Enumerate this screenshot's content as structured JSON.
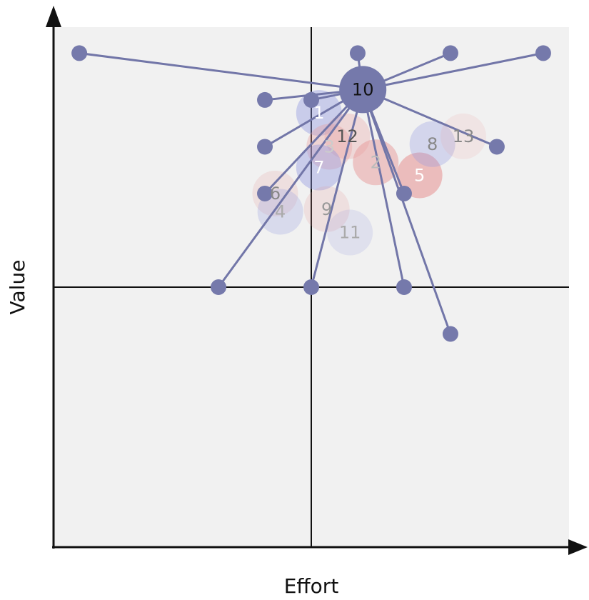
{
  "chart_data": {
    "type": "scatter",
    "title": "",
    "xlabel": "Effort",
    "ylabel": "Value",
    "xlim": [
      0,
      1
    ],
    "ylim": [
      0,
      1
    ],
    "quadrant_dividers": {
      "x": 0.5,
      "y": 0.5
    },
    "grid": false,
    "colors": {
      "background": "#f1f1f1",
      "connector": "#7276a8",
      "point": "#7579ab",
      "axis": "#111111",
      "bubble_blue": "#8f96e0",
      "bubble_red": "#e89a9a"
    },
    "hub": {
      "label": "10",
      "x": 0.6,
      "y": 0.88
    },
    "points": [
      {
        "x": 0.05,
        "y": 0.95
      },
      {
        "x": 0.41,
        "y": 0.86
      },
      {
        "x": 0.5,
        "y": 0.86
      },
      {
        "x": 0.59,
        "y": 0.86
      },
      {
        "x": 0.59,
        "y": 0.95
      },
      {
        "x": 0.77,
        "y": 0.95
      },
      {
        "x": 0.95,
        "y": 0.95
      },
      {
        "x": 0.41,
        "y": 0.77
      },
      {
        "x": 0.86,
        "y": 0.77
      },
      {
        "x": 0.41,
        "y": 0.68
      },
      {
        "x": 0.68,
        "y": 0.68
      },
      {
        "x": 0.32,
        "y": 0.5
      },
      {
        "x": 0.5,
        "y": 0.5
      },
      {
        "x": 0.68,
        "y": 0.5
      },
      {
        "x": 0.77,
        "y": 0.41
      }
    ],
    "bubbles": [
      {
        "label": "1",
        "x": 0.515,
        "y": 0.835,
        "color": "blue",
        "opacity": 0.4,
        "text_color": "#ffffff"
      },
      {
        "label": "12",
        "x": 0.57,
        "y": 0.79,
        "color": "red",
        "opacity": 0.3,
        "text_color": "#555555"
      },
      {
        "label": "3",
        "x": 0.535,
        "y": 0.77,
        "color": "red",
        "opacity": 0.35,
        "text_color": "#cccccc"
      },
      {
        "label": "7",
        "x": 0.515,
        "y": 0.73,
        "color": "blue",
        "opacity": 0.4,
        "text_color": "#ffffff"
      },
      {
        "label": "2",
        "x": 0.625,
        "y": 0.74,
        "color": "red",
        "opacity": 0.5,
        "text_color": "#bbbbbb"
      },
      {
        "label": "5",
        "x": 0.71,
        "y": 0.715,
        "color": "red",
        "opacity": 0.6,
        "text_color": "#ffffff"
      },
      {
        "label": "8",
        "x": 0.735,
        "y": 0.775,
        "color": "blue",
        "opacity": 0.3,
        "text_color": "#888888"
      },
      {
        "label": "13",
        "x": 0.795,
        "y": 0.79,
        "color": "red",
        "opacity": 0.15,
        "text_color": "#888888"
      },
      {
        "label": "6",
        "x": 0.43,
        "y": 0.68,
        "color": "red",
        "opacity": 0.2,
        "text_color": "#888888"
      },
      {
        "label": "4",
        "x": 0.44,
        "y": 0.645,
        "color": "blue",
        "opacity": 0.25,
        "text_color": "#aaaaaa"
      },
      {
        "label": "9",
        "x": 0.53,
        "y": 0.65,
        "color": "red",
        "opacity": 0.2,
        "text_color": "#999999"
      },
      {
        "label": "11",
        "x": 0.575,
        "y": 0.605,
        "color": "blue",
        "opacity": 0.18,
        "text_color": "#aaaaaa"
      }
    ]
  }
}
